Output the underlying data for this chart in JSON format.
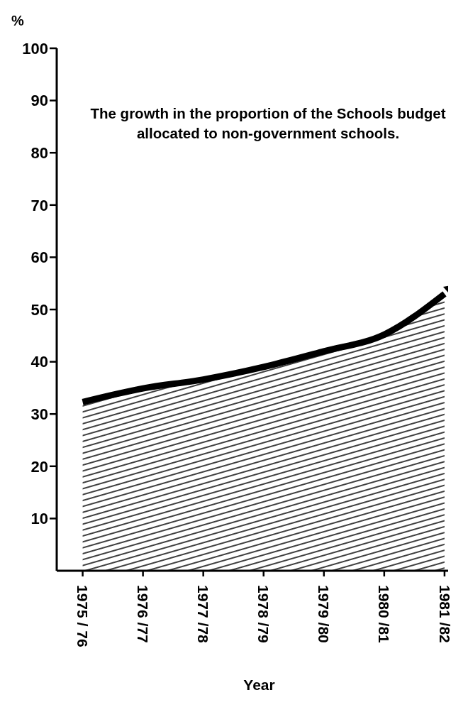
{
  "chart_data": {
    "type": "area",
    "title": "The growth in the proportion of the Schools budget allocated to non-government schools.",
    "xlabel": "Year",
    "ylabel": "%",
    "categories": [
      "1975 / 76",
      "1976 /77",
      "1977 /78",
      "1978 /79",
      "1979 /80",
      "1980 /81",
      "1981 /82"
    ],
    "series": [
      {
        "color": "#000000",
        "values": [
          32.3,
          34.9,
          36.6,
          39,
          42,
          45.2,
          53
        ]
      }
    ],
    "ylim": [
      0,
      100
    ],
    "yticks": [
      10,
      20,
      30,
      40,
      50,
      60,
      70,
      80,
      90,
      100
    ],
    "grid": false,
    "legend": false
  }
}
